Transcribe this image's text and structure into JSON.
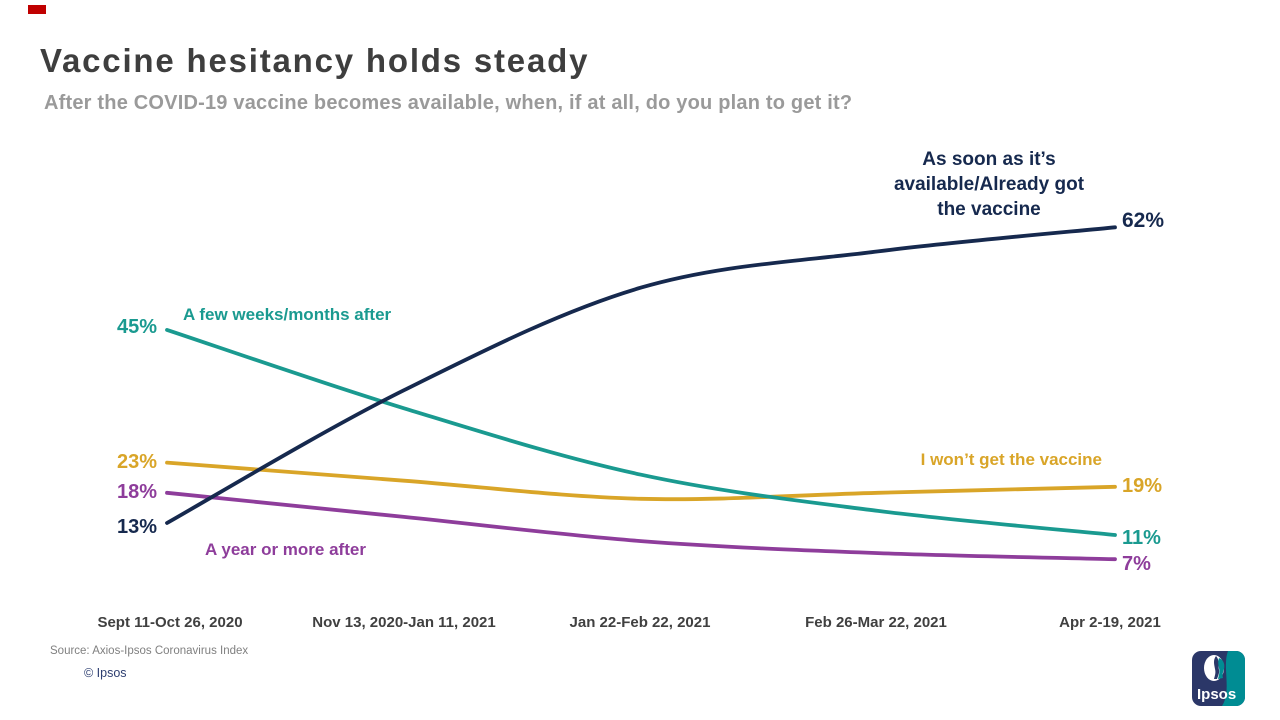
{
  "header": {
    "accent_color": "#C00000",
    "title": "Vaccine hesitancy holds steady",
    "subtitle": "After the COVID-19 vaccine becomes available, when, if at all, do you plan to get it?"
  },
  "chart_data": {
    "type": "line",
    "x_labels": [
      "Sept 11-Oct 26, 2020",
      "Nov 13, 2020-Jan 11, 2021",
      "Jan 22-Feb 22, 2021",
      "Feb 26-Mar 22, 2021",
      "Apr 2-19, 2021"
    ],
    "ylim": [
      0,
      70
    ],
    "grid": false,
    "legend": "inline-labels",
    "series": [
      {
        "name": "As soon as it’s available/Already got the vaccine",
        "color": "#16294E",
        "values": [
          13,
          35,
          52,
          58,
          62
        ],
        "first_label": "13%",
        "last_label": "62%"
      },
      {
        "name": "A few weeks/months after",
        "color": "#1A9A90",
        "values": [
          45,
          32,
          21,
          15,
          11
        ],
        "first_label": "45%",
        "last_label": "11%"
      },
      {
        "name": "I won’t get the vaccine",
        "color": "#D9A528",
        "values": [
          23,
          20,
          17,
          18,
          19
        ],
        "first_label": "23%",
        "last_label": "19%"
      },
      {
        "name": "A year or more after",
        "color": "#8E3D9B",
        "values": [
          18,
          14,
          10,
          8,
          7
        ],
        "first_label": "18%",
        "last_label": "7%"
      }
    ]
  },
  "footer": {
    "source": "Source: Axios-Ipsos Coronavirus Index",
    "copyright": "© Ipsos",
    "logo_text": "Ipsos"
  }
}
